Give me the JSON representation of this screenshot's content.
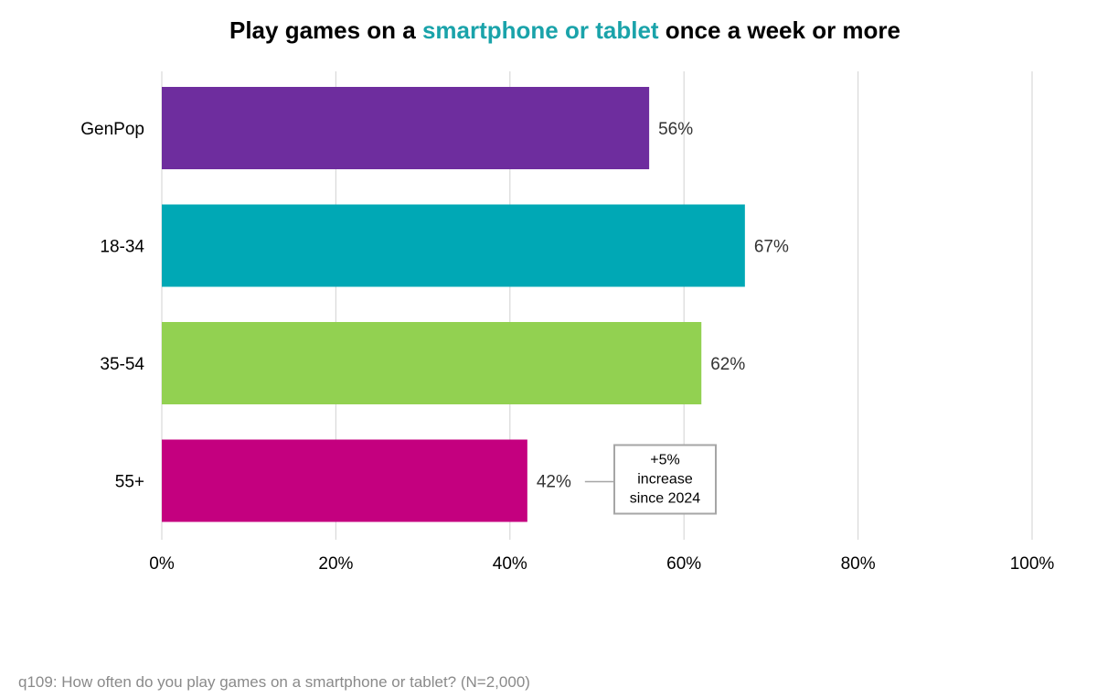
{
  "title": {
    "prefix": "Play games on a ",
    "highlight": "smartphone or tablet",
    "suffix": " once a week or more",
    "highlight_color": "#1aa3aa"
  },
  "chart_data": {
    "type": "bar",
    "orientation": "horizontal",
    "categories": [
      "GenPop",
      "18-34",
      "35-54",
      "55+"
    ],
    "values": [
      56,
      67,
      62,
      42
    ],
    "value_labels": [
      "56%",
      "67%",
      "62%",
      "42%"
    ],
    "colors": [
      "#6e2d9e",
      "#00a8b5",
      "#92d151",
      "#c4007f"
    ],
    "xlim": [
      0,
      100
    ],
    "x_ticks": [
      0,
      20,
      40,
      60,
      80,
      100
    ],
    "x_tick_labels": [
      "0%",
      "20%",
      "40%",
      "60%",
      "80%",
      "100%"
    ],
    "grid": true,
    "annotation": {
      "category": "55+",
      "lines": [
        "+5%",
        "increase",
        "since 2024"
      ]
    }
  },
  "footnote": "q109: How often do you play games on a smartphone or tablet? (N=2,000)"
}
